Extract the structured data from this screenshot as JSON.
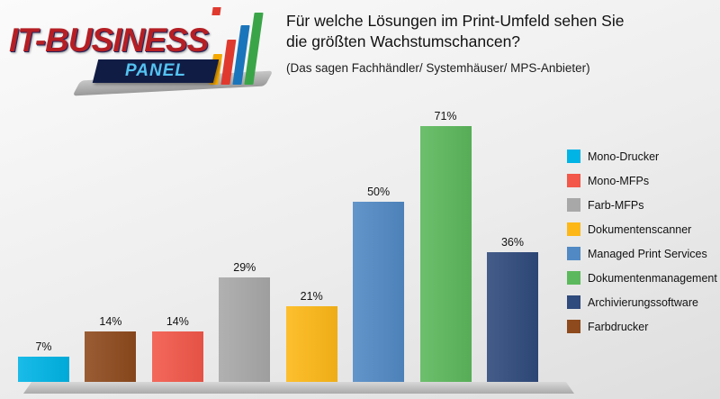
{
  "logo": {
    "line1": "IT-BUSINESS",
    "line2": "PANEL"
  },
  "header": {
    "title_line1": "Für welche Lösungen im Print-Umfeld sehen Sie",
    "title_line2": "die größten Wachstumschancen?",
    "subtitle": "(Das sagen Fachhändler/ Systemhäuser/ MPS-Anbieter)"
  },
  "chart_data": {
    "type": "bar",
    "title": "Für welche Lösungen im Print-Umfeld sehen Sie die größten Wachstumschancen?",
    "subtitle": "(Das sagen Fachhändler/ Systemhäuser/ MPS-Anbieter)",
    "categories": [
      "Mono-Drucker",
      "Farbdrucker",
      "Mono-MFPs",
      "Farb-MFPs",
      "Dokumentenscanner",
      "Managed Print Services",
      "Dokumentenmanagement",
      "Archivierungssoftware"
    ],
    "values": [
      7,
      14,
      14,
      29,
      21,
      50,
      71,
      36
    ],
    "value_labels": [
      "7%",
      "14%",
      "14%",
      "29%",
      "21%",
      "50%",
      "71%",
      "36%"
    ],
    "colors": [
      "#00b4e5",
      "#8e4a1d",
      "#f25749",
      "#a8a8a8",
      "#fdb817",
      "#5189c4",
      "#5cb85c",
      "#2f4a7c"
    ],
    "ylim": [
      0,
      80
    ],
    "grid": false,
    "legend_position": "right",
    "legend": [
      {
        "label": "Mono-Drucker",
        "color": "#00b4e5"
      },
      {
        "label": "Mono-MFPs",
        "color": "#f25749"
      },
      {
        "label": "Farb-MFPs",
        "color": "#a8a8a8"
      },
      {
        "label": "Dokumentenscanner",
        "color": "#fdb817"
      },
      {
        "label": "Managed Print Services",
        "color": "#5189c4"
      },
      {
        "label": "Dokumentenmanagement",
        "color": "#5cb85c"
      },
      {
        "label": "Archivierungssoftware",
        "color": "#2f4a7c"
      },
      {
        "label": "Farbdrucker",
        "color": "#8e4a1d"
      }
    ],
    "logo_icon_colors": [
      "#f5a800",
      "#e03a2f",
      "#1b75bb",
      "#3aa548"
    ]
  }
}
